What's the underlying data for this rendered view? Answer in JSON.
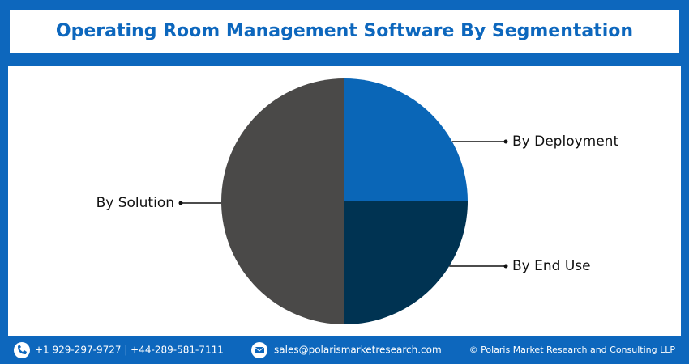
{
  "chart_data": {
    "type": "pie",
    "title": "Operating Room Management Software By Segmentation",
    "categories": [
      "By Deployment",
      "By End Use",
      "By Solution"
    ],
    "values": [
      25,
      25,
      50
    ],
    "colors": [
      "#0a66b7",
      "#003352",
      "#4a4948"
    ]
  },
  "footer": {
    "phone": "+1 929-297-9727 | +44-289-581-7111",
    "email": "sales@polarismarketresearch.com",
    "copyright": "© Polaris Market Research and Consulting LLP"
  }
}
